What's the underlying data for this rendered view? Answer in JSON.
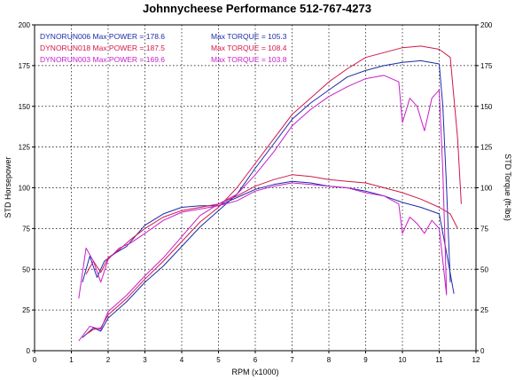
{
  "chart_data": {
    "type": "line",
    "title": "Johnnycheese Performance 512-767-4273",
    "xlabel": "RPM (x1000)",
    "ylabel_left": "STD Horsepower",
    "ylabel_right": "STD Torque (ft-lbs)",
    "xlim": [
      0,
      12
    ],
    "ylim": [
      0,
      200
    ],
    "x_ticks": [
      "0",
      "1",
      "2",
      "3",
      "4",
      "5",
      "6",
      "7",
      "8",
      "9",
      "10",
      "11",
      "12"
    ],
    "y_ticks": [
      "0",
      "25",
      "50",
      "75",
      "100",
      "125",
      "150",
      "175",
      "200"
    ],
    "grid": true,
    "legend_placement": "top-left",
    "legend": [
      {
        "run": "DYNORUN006",
        "power_label": "Max POWER",
        "power": "178.6",
        "torque_label": "Max TORQUE",
        "torque": "105.3",
        "color": "#1c2ca8"
      },
      {
        "run": "DYNORUN018",
        "power_label": "Max POWER",
        "power": "187.5",
        "torque_label": "Max TORQUE",
        "torque": "108.4",
        "color": "#d21848"
      },
      {
        "run": "DYNORUN003",
        "power_label": "Max POWER",
        "power": "169.6",
        "torque_label": "Max TORQUE",
        "torque": "103.8",
        "color": "#c81ec8"
      }
    ],
    "series": [
      {
        "name": "DYNORUN006",
        "measure": "horsepower",
        "color": "#1c2ca8",
        "x": [
          1.3,
          1.6,
          1.8,
          2.0,
          2.5,
          3.0,
          3.5,
          4.0,
          4.5,
          5.0,
          5.5,
          6.0,
          6.5,
          7.0,
          7.5,
          8.0,
          8.5,
          9.0,
          9.5,
          10.0,
          10.5,
          11.0,
          11.1,
          11.2,
          11.3
        ],
        "y": [
          8,
          14,
          12,
          20,
          30,
          42,
          52,
          64,
          76,
          86,
          96,
          112,
          127,
          142,
          152,
          160,
          168,
          172,
          175,
          177,
          178,
          176,
          150,
          100,
          42
        ]
      },
      {
        "name": "DYNORUN006",
        "measure": "torque",
        "color": "#1c2ca8",
        "x": [
          1.3,
          1.5,
          1.7,
          1.9,
          2.2,
          2.5,
          3.0,
          3.5,
          4.0,
          4.5,
          5.0,
          5.5,
          6.0,
          6.5,
          7.0,
          7.5,
          8.0,
          8.5,
          9.0,
          9.5,
          10.0,
          10.5,
          11.0,
          11.2,
          11.4
        ],
        "y": [
          42,
          58,
          45,
          55,
          60,
          64,
          77,
          84,
          88,
          89,
          89,
          94,
          99,
          102,
          104,
          103,
          101,
          100,
          98,
          95,
          91,
          88,
          84,
          60,
          35
        ]
      },
      {
        "name": "DYNORUN018",
        "measure": "horsepower",
        "color": "#d21848",
        "x": [
          1.4,
          1.6,
          1.8,
          2.0,
          2.5,
          3.0,
          3.5,
          4.0,
          4.5,
          5.0,
          5.5,
          6.0,
          6.5,
          7.0,
          7.5,
          8.0,
          8.5,
          9.0,
          9.5,
          10.0,
          10.5,
          11.0,
          11.3,
          11.5,
          11.6
        ],
        "y": [
          10,
          13,
          14,
          22,
          32,
          44,
          55,
          67,
          79,
          88,
          100,
          115,
          130,
          145,
          155,
          165,
          173,
          180,
          183,
          186,
          187,
          185,
          180,
          130,
          90
        ]
      },
      {
        "name": "DYNORUN018",
        "measure": "torque",
        "color": "#d21848",
        "x": [
          1.4,
          1.6,
          1.8,
          2.0,
          2.3,
          2.6,
          3.0,
          3.5,
          4.0,
          4.5,
          5.0,
          5.5,
          6.0,
          6.5,
          7.0,
          7.5,
          8.0,
          8.5,
          9.0,
          9.5,
          10.0,
          10.5,
          11.0,
          11.3,
          11.5
        ],
        "y": [
          47,
          55,
          48,
          57,
          62,
          68,
          75,
          82,
          86,
          88,
          90,
          95,
          101,
          105,
          108,
          107,
          105,
          104,
          103,
          100,
          97,
          93,
          88,
          84,
          75
        ]
      },
      {
        "name": "DYNORUN003",
        "measure": "horsepower",
        "color": "#c81ec8",
        "x": [
          1.2,
          1.5,
          1.8,
          2.0,
          2.5,
          3.0,
          3.5,
          4.0,
          4.5,
          5.0,
          5.5,
          6.0,
          6.5,
          7.0,
          7.5,
          8.0,
          8.5,
          9.0,
          9.5,
          9.9,
          10.0,
          10.2,
          10.4,
          10.6,
          10.8,
          11.0,
          11.1,
          11.2
        ],
        "y": [
          6,
          15,
          13,
          24,
          34,
          46,
          57,
          70,
          83,
          90,
          96,
          108,
          122,
          138,
          148,
          156,
          162,
          167,
          169,
          165,
          140,
          155,
          150,
          135,
          155,
          160,
          110,
          35
        ]
      },
      {
        "name": "DYNORUN003",
        "measure": "torque",
        "color": "#c81ec8",
        "x": [
          1.2,
          1.4,
          1.6,
          1.8,
          2.0,
          2.3,
          2.6,
          3.0,
          3.5,
          4.0,
          4.5,
          5.0,
          5.5,
          6.0,
          6.5,
          7.0,
          7.5,
          8.0,
          8.5,
          9.0,
          9.5,
          9.9,
          10.0,
          10.2,
          10.4,
          10.6,
          10.8,
          11.0,
          11.1,
          11.2
        ],
        "y": [
          32,
          63,
          55,
          42,
          56,
          63,
          66,
          72,
          80,
          85,
          87,
          89,
          92,
          98,
          101,
          103,
          102,
          101,
          100,
          97,
          95,
          90,
          72,
          82,
          78,
          72,
          80,
          75,
          55,
          34
        ]
      }
    ]
  }
}
